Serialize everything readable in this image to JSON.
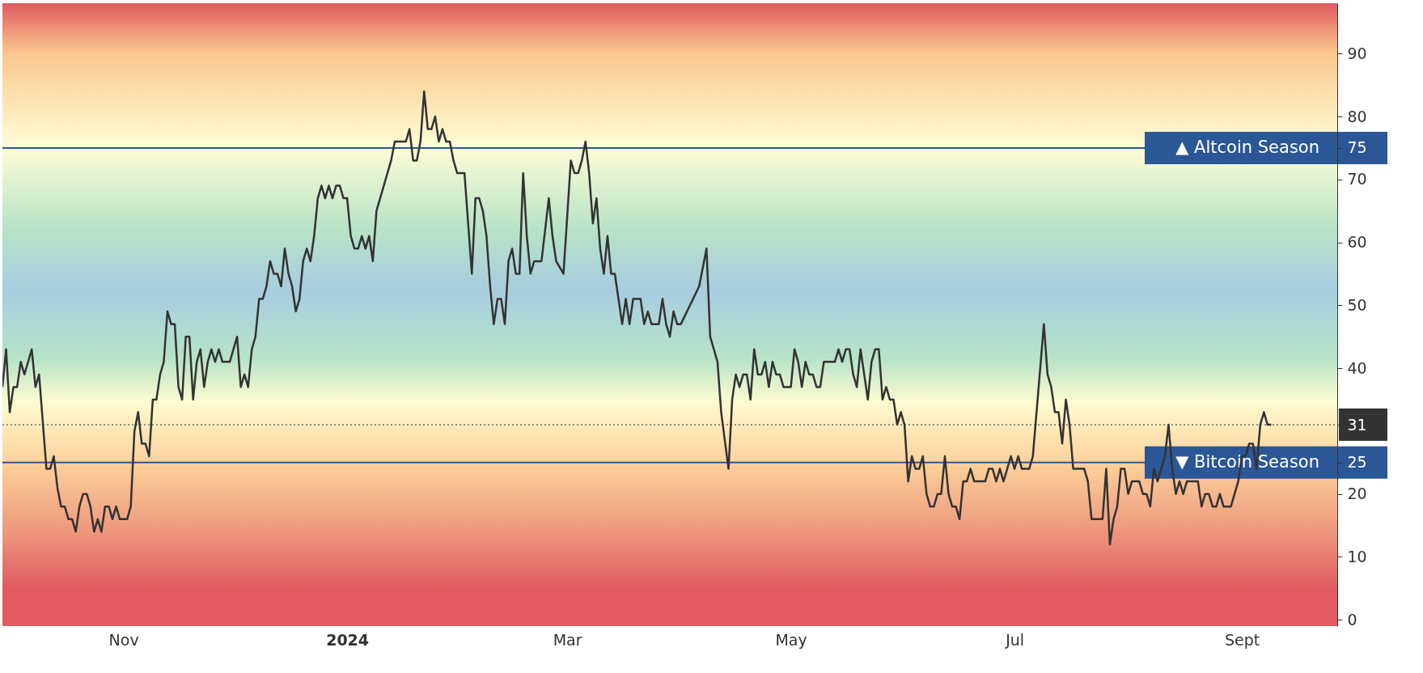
{
  "chart_data": {
    "type": "line",
    "x": [
      "2023-09-29",
      "2023-09-30",
      "2023-10-01",
      "2023-10-02",
      "2023-10-03",
      "2023-10-04",
      "2023-10-05",
      "2023-10-07",
      "2023-10-08",
      "2023-10-09",
      "2023-10-11",
      "2023-10-12",
      "2023-10-13",
      "2023-10-14",
      "2023-10-15",
      "2023-10-16",
      "2023-10-17",
      "2023-10-18",
      "2023-10-19",
      "2023-10-20",
      "2023-10-21",
      "2023-10-22",
      "2023-10-23",
      "2023-10-24",
      "2023-10-25",
      "2023-10-26",
      "2023-10-27",
      "2023-10-28",
      "2023-10-29",
      "2023-10-30",
      "2023-10-31",
      "2023-11-01",
      "2023-11-02",
      "2023-11-03",
      "2023-11-04",
      "2023-11-05",
      "2023-11-06",
      "2023-11-07",
      "2023-11-08",
      "2023-11-09",
      "2023-11-10",
      "2023-11-11",
      "2023-11-12",
      "2023-11-13",
      "2023-11-14",
      "2023-11-15",
      "2023-11-16",
      "2023-11-17",
      "2023-11-18",
      "2023-11-19",
      "2023-11-20",
      "2023-11-21",
      "2023-11-22",
      "2023-11-23",
      "2023-11-24",
      "2023-11-25",
      "2023-11-26",
      "2023-11-27",
      "2023-11-28",
      "2023-11-29",
      "2023-11-30",
      "2023-12-01",
      "2023-12-02",
      "2023-12-03",
      "2023-12-04",
      "2023-12-05",
      "2023-12-06",
      "2023-12-07",
      "2023-12-08",
      "2023-12-09",
      "2023-12-10",
      "2023-12-11",
      "2023-12-12",
      "2023-12-13",
      "2023-12-14",
      "2023-12-15",
      "2023-12-16",
      "2023-12-17",
      "2023-12-18",
      "2023-12-19",
      "2023-12-20",
      "2023-12-21",
      "2023-12-22",
      "2023-12-23",
      "2023-12-24",
      "2023-12-25",
      "2023-12-26",
      "2023-12-27",
      "2023-12-28",
      "2023-12-29",
      "2023-12-30",
      "2023-12-31",
      "2024-01-01",
      "2024-01-02",
      "2024-01-03",
      "2024-01-04",
      "2024-01-05",
      "2024-01-06",
      "2024-01-07",
      "2024-01-08",
      "2024-01-09",
      "2024-01-10",
      "2024-01-11",
      "2024-01-13",
      "2024-01-14",
      "2024-01-15",
      "2024-01-17",
      "2024-01-18",
      "2024-01-19",
      "2024-01-20",
      "2024-01-21",
      "2024-01-22",
      "2024-01-23",
      "2024-01-24",
      "2024-01-25",
      "2024-01-26",
      "2024-01-27",
      "2024-01-28",
      "2024-01-29",
      "2024-01-30",
      "2024-01-31",
      "2024-02-01",
      "2024-02-02",
      "2024-02-03",
      "2024-02-04",
      "2024-02-05",
      "2024-02-06",
      "2024-02-07",
      "2024-02-08",
      "2024-02-09",
      "2024-02-10",
      "2024-02-11",
      "2024-02-12",
      "2024-02-13",
      "2024-02-14",
      "2024-02-15",
      "2024-02-16",
      "2024-02-17",
      "2024-02-18",
      "2024-02-19",
      "2024-02-20",
      "2024-02-21",
      "2024-02-22",
      "2024-02-23",
      "2024-02-25",
      "2024-02-26",
      "2024-02-27",
      "2024-02-29",
      "2024-03-02",
      "2024-03-03",
      "2024-03-04",
      "2024-03-05",
      "2024-03-06",
      "2024-03-07",
      "2024-03-08",
      "2024-03-09",
      "2024-03-10",
      "2024-03-11",
      "2024-03-12",
      "2024-03-13",
      "2024-03-14",
      "2024-03-15",
      "2024-03-16",
      "2024-03-17",
      "2024-03-18",
      "2024-03-19",
      "2024-03-20",
      "2024-03-21",
      "2024-03-22",
      "2024-03-23",
      "2024-03-24",
      "2024-03-25",
      "2024-03-26",
      "2024-03-27",
      "2024-03-28",
      "2024-03-29",
      "2024-03-30",
      "2024-03-31",
      "2024-04-01",
      "2024-04-06",
      "2024-04-08",
      "2024-04-09",
      "2024-04-11",
      "2024-04-12",
      "2024-04-14",
      "2024-04-15",
      "2024-04-16",
      "2024-04-17",
      "2024-04-18",
      "2024-04-19",
      "2024-04-20",
      "2024-04-21",
      "2024-04-22",
      "2024-04-23",
      "2024-04-24",
      "2024-04-25",
      "2024-04-26",
      "2024-04-27",
      "2024-04-28",
      "2024-04-29",
      "2024-04-30",
      "2024-05-01",
      "2024-05-02",
      "2024-05-03",
      "2024-05-04",
      "2024-05-05",
      "2024-05-06",
      "2024-05-07",
      "2024-05-08",
      "2024-05-09",
      "2024-05-10",
      "2024-05-11",
      "2024-05-12",
      "2024-05-13",
      "2024-05-14",
      "2024-05-15",
      "2024-05-16",
      "2024-05-17",
      "2024-05-18",
      "2024-05-19",
      "2024-05-20",
      "2024-05-21",
      "2024-05-22",
      "2024-05-23",
      "2024-05-24",
      "2024-05-25",
      "2024-05-26",
      "2024-05-27",
      "2024-05-28",
      "2024-05-29",
      "2024-05-30",
      "2024-05-31",
      "2024-06-01",
      "2024-06-02",
      "2024-06-03",
      "2024-06-04",
      "2024-06-05",
      "2024-06-06",
      "2024-06-07",
      "2024-06-08",
      "2024-06-09",
      "2024-06-10",
      "2024-06-11",
      "2024-06-12",
      "2024-06-13",
      "2024-06-14",
      "2024-06-15",
      "2024-06-16",
      "2024-06-17",
      "2024-06-18",
      "2024-06-19",
      "2024-06-20",
      "2024-06-21",
      "2024-06-22",
      "2024-06-23",
      "2024-06-24",
      "2024-06-25",
      "2024-06-26",
      "2024-06-27",
      "2024-06-28",
      "2024-06-29",
      "2024-06-30",
      "2024-07-01",
      "2024-07-02",
      "2024-07-03",
      "2024-07-04",
      "2024-07-05",
      "2024-07-06",
      "2024-07-07",
      "2024-07-08",
      "2024-07-09",
      "2024-07-10",
      "2024-07-11",
      "2024-07-12",
      "2024-07-13",
      "2024-07-14",
      "2024-07-15",
      "2024-07-16",
      "2024-07-17",
      "2024-07-18",
      "2024-07-19",
      "2024-07-20",
      "2024-07-21",
      "2024-07-22",
      "2024-07-23",
      "2024-07-24",
      "2024-07-25",
      "2024-07-26",
      "2024-07-27",
      "2024-07-28",
      "2024-07-29",
      "2024-07-30",
      "2024-07-31",
      "2024-08-01",
      "2024-08-02",
      "2024-08-03",
      "2024-08-04",
      "2024-08-05",
      "2024-08-06",
      "2024-08-07",
      "2024-08-08",
      "2024-08-09",
      "2024-08-10",
      "2024-08-11",
      "2024-08-12",
      "2024-08-13",
      "2024-08-14",
      "2024-08-15",
      "2024-08-16",
      "2024-08-17",
      "2024-08-18",
      "2024-08-19",
      "2024-08-20",
      "2024-08-21",
      "2024-08-22",
      "2024-08-23",
      "2024-08-24",
      "2024-08-25",
      "2024-08-26",
      "2024-08-27",
      "2024-08-28",
      "2024-08-29",
      "2024-08-30",
      "2024-08-31",
      "2024-09-01",
      "2024-09-02",
      "2024-09-03",
      "2024-09-04",
      "2024-09-05",
      "2024-09-06",
      "2024-09-07",
      "2024-09-08",
      "2024-09-09"
    ],
    "series": [
      {
        "color": "#333333",
        "values": [
          37,
          43,
          33,
          37,
          37,
          41,
          39,
          43,
          37,
          39,
          24,
          24,
          26,
          21,
          18,
          18,
          16,
          16,
          14,
          18,
          20,
          20,
          18,
          14,
          16,
          14,
          18,
          18,
          16,
          18,
          16,
          16,
          16,
          18,
          30,
          33,
          28,
          28,
          26,
          35,
          35,
          39,
          41,
          49,
          47,
          47,
          37,
          35,
          45,
          45,
          35,
          41,
          43,
          37,
          41,
          43,
          41,
          43,
          41,
          41,
          41,
          43,
          45,
          37,
          39,
          37,
          43,
          45,
          51,
          51,
          53,
          57,
          55,
          55,
          53,
          59,
          55,
          53,
          49,
          51,
          57,
          59,
          57,
          61,
          67,
          69,
          67,
          69,
          67,
          69,
          69,
          67,
          67,
          61,
          59,
          59,
          61,
          59,
          61,
          57,
          65,
          67,
          69,
          73,
          76,
          76,
          76,
          78,
          73,
          73,
          76,
          84,
          78,
          78,
          80,
          76,
          78,
          76,
          76,
          73,
          71,
          71,
          71,
          63,
          55,
          67,
          67,
          65,
          61,
          53,
          47,
          51,
          51,
          47,
          57,
          59,
          55,
          55,
          71,
          61,
          55,
          57,
          57,
          57,
          67,
          61,
          57,
          55,
          73,
          71,
          71,
          73,
          76,
          71,
          63,
          67,
          59,
          55,
          61,
          55,
          55,
          51,
          47,
          51,
          47,
          51,
          51,
          51,
          47,
          49,
          47,
          47,
          47,
          51,
          47,
          45,
          49,
          47,
          47,
          53,
          59,
          45,
          41,
          33,
          24,
          35,
          39,
          37,
          39,
          39,
          35,
          43,
          39,
          39,
          41,
          37,
          41,
          39,
          39,
          37,
          37,
          37,
          43,
          41,
          37,
          41,
          39,
          39,
          37,
          37,
          41,
          41,
          41,
          41,
          43,
          41,
          43,
          43,
          39,
          37,
          43,
          39,
          35,
          41,
          43,
          43,
          35,
          37,
          35,
          35,
          31,
          33,
          31,
          22,
          26,
          24,
          24,
          26,
          20,
          18,
          18,
          20,
          20,
          26,
          20,
          18,
          18,
          16,
          22,
          22,
          24,
          22,
          22,
          22,
          22,
          24,
          24,
          22,
          24,
          22,
          24,
          26,
          24,
          26,
          24,
          24,
          24,
          26,
          33,
          40,
          47,
          39,
          37,
          33,
          33,
          28,
          35,
          31,
          24,
          24,
          24,
          24,
          22,
          16,
          16,
          16,
          16,
          24,
          12,
          16,
          18,
          24,
          24,
          20,
          22,
          22,
          22,
          20,
          20,
          18,
          24,
          22,
          24,
          26,
          31,
          24,
          20,
          22,
          20,
          22,
          22,
          22,
          22,
          18,
          20,
          20,
          18,
          18,
          20,
          18,
          18,
          18,
          20,
          22,
          26,
          26,
          28,
          28,
          24,
          31,
          33,
          31,
          31
        ]
      }
    ],
    "xlim": [
      "2023-09-29",
      "2024-09-27"
    ],
    "xticks": [
      {
        "value": "2023-11-01",
        "label": "Nov"
      },
      {
        "value": "2024-01-01",
        "label": "2024"
      },
      {
        "value": "2024-03-01",
        "label": "Mar"
      },
      {
        "value": "2024-05-01",
        "label": "May"
      },
      {
        "value": "2024-07-01",
        "label": "Jul"
      },
      {
        "value": "2024-09-01",
        "label": "Sept"
      }
    ],
    "ylim": [
      -1,
      98
    ],
    "yticks": [
      0,
      10,
      20,
      25,
      31,
      40,
      50,
      60,
      70,
      75,
      80,
      90
    ],
    "grid": false,
    "ref_lines": [
      {
        "axis": "y",
        "value": 75,
        "label": "▲ Altcoin Season",
        "color": "#2b5797",
        "line_style": "solid"
      },
      {
        "axis": "y",
        "value": 25,
        "label": "▼ Bitcoin Season",
        "color": "#2b5797",
        "line_style": "solid"
      },
      {
        "axis": "y",
        "value": 31,
        "label": null,
        "color": "#333333",
        "line_style": "dotted"
      }
    ]
  }
}
